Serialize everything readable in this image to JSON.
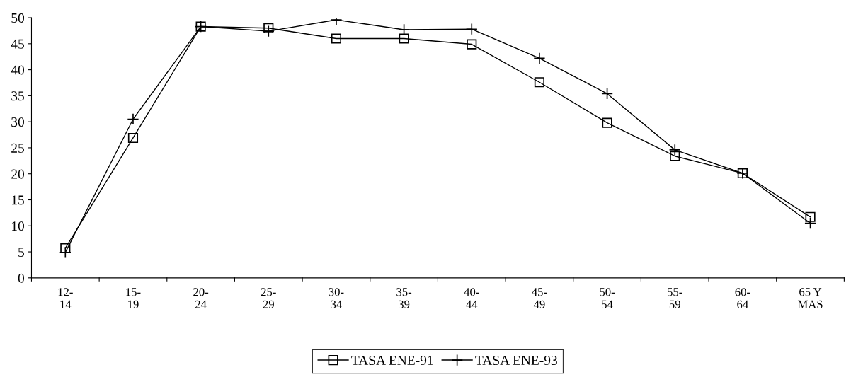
{
  "chart_data": {
    "type": "line",
    "categories": [
      "12-\n14",
      "15-\n19",
      "20-\n24",
      "25-\n29",
      "30-\n34",
      "35-\n39",
      "40-\n44",
      "45-\n49",
      "50-\n54",
      "55-\n59",
      "60-\n64",
      "65 Y\nMAS"
    ],
    "series": [
      {
        "name": "TASA ENE-91",
        "color": "#000000",
        "marker": "square",
        "values": [
          5.7,
          26.9,
          48.3,
          48.0,
          46.0,
          46.0,
          44.9,
          37.6,
          29.8,
          23.4,
          20.1,
          11.7
        ]
      },
      {
        "name": "TASA ENE-93",
        "color": "#000000",
        "marker": "cross",
        "values": [
          4.9,
          30.5,
          48.3,
          47.4,
          49.6,
          47.7,
          47.8,
          42.2,
          35.4,
          24.6,
          20.1,
          10.5
        ]
      }
    ],
    "ylim": [
      0,
      50
    ],
    "yticks": [
      0,
      5,
      10,
      15,
      20,
      25,
      30,
      35,
      40,
      45,
      50
    ],
    "grid": false,
    "legend": "bottom",
    "line_style": "solid"
  }
}
